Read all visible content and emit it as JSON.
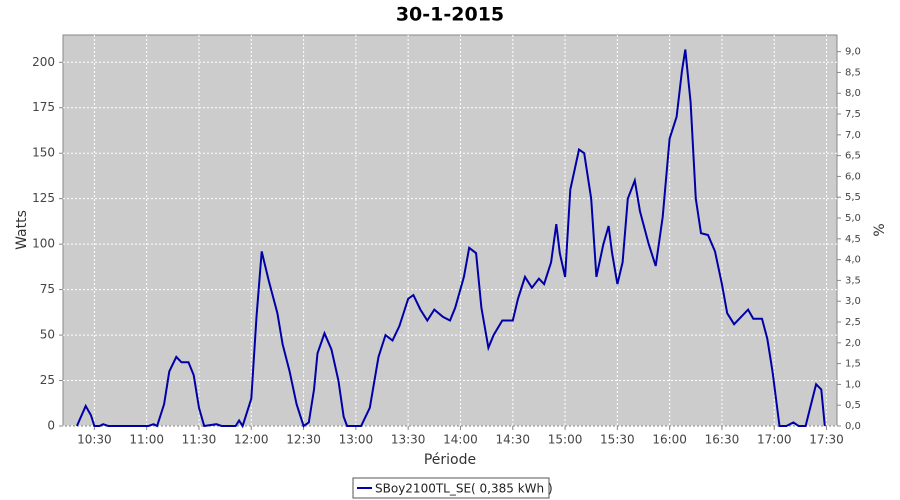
{
  "chart_data": {
    "type": "line",
    "title": "30-1-2015",
    "x_label": "Période",
    "y_label": "Watts",
    "y2_label": "%",
    "x": [
      "10:20",
      "10:25",
      "10:28",
      "10:30",
      "10:33",
      "10:35",
      "10:38",
      "11:01",
      "11:04",
      "11:06",
      "11:10",
      "11:13",
      "11:17",
      "11:20",
      "11:24",
      "11:27",
      "11:30",
      "11:33",
      "11:40",
      "11:43",
      "11:51",
      "11:53",
      "11:55",
      "12:00",
      "12:03",
      "12:06",
      "12:10",
      "12:15",
      "12:18",
      "12:22",
      "12:26",
      "12:30",
      "12:33",
      "12:36",
      "12:38",
      "12:42",
      "12:46",
      "12:50",
      "12:53",
      "12:55",
      "13:00",
      "13:03",
      "13:08",
      "13:13",
      "13:17",
      "13:21",
      "13:25",
      "13:30",
      "13:33",
      "13:37",
      "13:41",
      "13:45",
      "13:50",
      "13:54",
      "13:57",
      "14:02",
      "14:05",
      "14:09",
      "14:12",
      "14:16",
      "14:19",
      "14:24",
      "14:30",
      "14:33",
      "14:37",
      "14:41",
      "14:45",
      "14:48",
      "14:52",
      "14:55",
      "14:57",
      "15:00",
      "15:03",
      "15:08",
      "15:11",
      "15:15",
      "15:18",
      "15:22",
      "15:25",
      "15:27",
      "15:30",
      "15:33",
      "15:36",
      "15:40",
      "15:43",
      "15:48",
      "15:52",
      "15:56",
      "16:00",
      "16:04",
      "16:07",
      "16:09",
      "16:12",
      "16:15",
      "16:18",
      "16:22",
      "16:26",
      "16:30",
      "16:33",
      "16:37",
      "16:41",
      "16:45",
      "16:48",
      "16:53",
      "16:56",
      "16:59",
      "17:03",
      "17:07",
      "17:11",
      "17:14",
      "17:18",
      "17:24",
      "17:27",
      "17:29"
    ],
    "series": [
      {
        "name": "SBoy2100TL_SE( 0,385 kWh )",
        "color": "#0000a8",
        "values": [
          0,
          11,
          6,
          0,
          0,
          1,
          0,
          0,
          1,
          0,
          12,
          30,
          38,
          35,
          35,
          28,
          10,
          0,
          1,
          0,
          0,
          3,
          0,
          15,
          60,
          96,
          80,
          62,
          45,
          30,
          12,
          0,
          2,
          20,
          40,
          51,
          42,
          25,
          5,
          0,
          0,
          0,
          10,
          38,
          50,
          47,
          55,
          70,
          72,
          64,
          58,
          64,
          60,
          58,
          65,
          82,
          98,
          95,
          65,
          43,
          50,
          58,
          58,
          70,
          82,
          76,
          81,
          78,
          90,
          111,
          95,
          82,
          130,
          152,
          150,
          125,
          82,
          100,
          110,
          95,
          78,
          90,
          125,
          135,
          118,
          100,
          88,
          115,
          158,
          170,
          195,
          207,
          178,
          125,
          106,
          105,
          96,
          78,
          62,
          56,
          60,
          64,
          59,
          59,
          48,
          30,
          0,
          0,
          2,
          0,
          0,
          23,
          20,
          0
        ]
      }
    ],
    "xlim": [
      "10:12",
      "17:36"
    ],
    "xticks": [
      "10:30",
      "11:00",
      "11:30",
      "12:00",
      "12:30",
      "13:00",
      "13:30",
      "14:00",
      "14:30",
      "15:00",
      "15:30",
      "16:00",
      "16:30",
      "17:00",
      "17:30"
    ],
    "ylim": [
      0,
      215
    ],
    "yticks": [
      0,
      25,
      50,
      75,
      100,
      125,
      150,
      175,
      200
    ],
    "y2lim": [
      0,
      9.4
    ],
    "y2ticks": [
      {
        "value": 0,
        "label": "0,0"
      },
      {
        "value": 0.5,
        "label": "0,5"
      },
      {
        "value": 1,
        "label": "1,0"
      },
      {
        "value": 1.5,
        "label": "1,5"
      },
      {
        "value": 2,
        "label": "2,0"
      },
      {
        "value": 2.5,
        "label": "2,5"
      },
      {
        "value": 3,
        "label": "3,0"
      },
      {
        "value": 3.5,
        "label": "3,5"
      },
      {
        "value": 4,
        "label": "4,0"
      },
      {
        "value": 4.5,
        "label": "4,5"
      },
      {
        "value": 5,
        "label": "5,0"
      },
      {
        "value": 5.5,
        "label": "5,5"
      },
      {
        "value": 6,
        "label": "6,0"
      },
      {
        "value": 6.5,
        "label": "6,5"
      },
      {
        "value": 7,
        "label": "7,0"
      },
      {
        "value": 7.5,
        "label": "7,5"
      },
      {
        "value": 8,
        "label": "8,0"
      },
      {
        "value": 8.5,
        "label": "8,5"
      },
      {
        "value": 9,
        "label": "9,0"
      }
    ],
    "grid": true
  }
}
